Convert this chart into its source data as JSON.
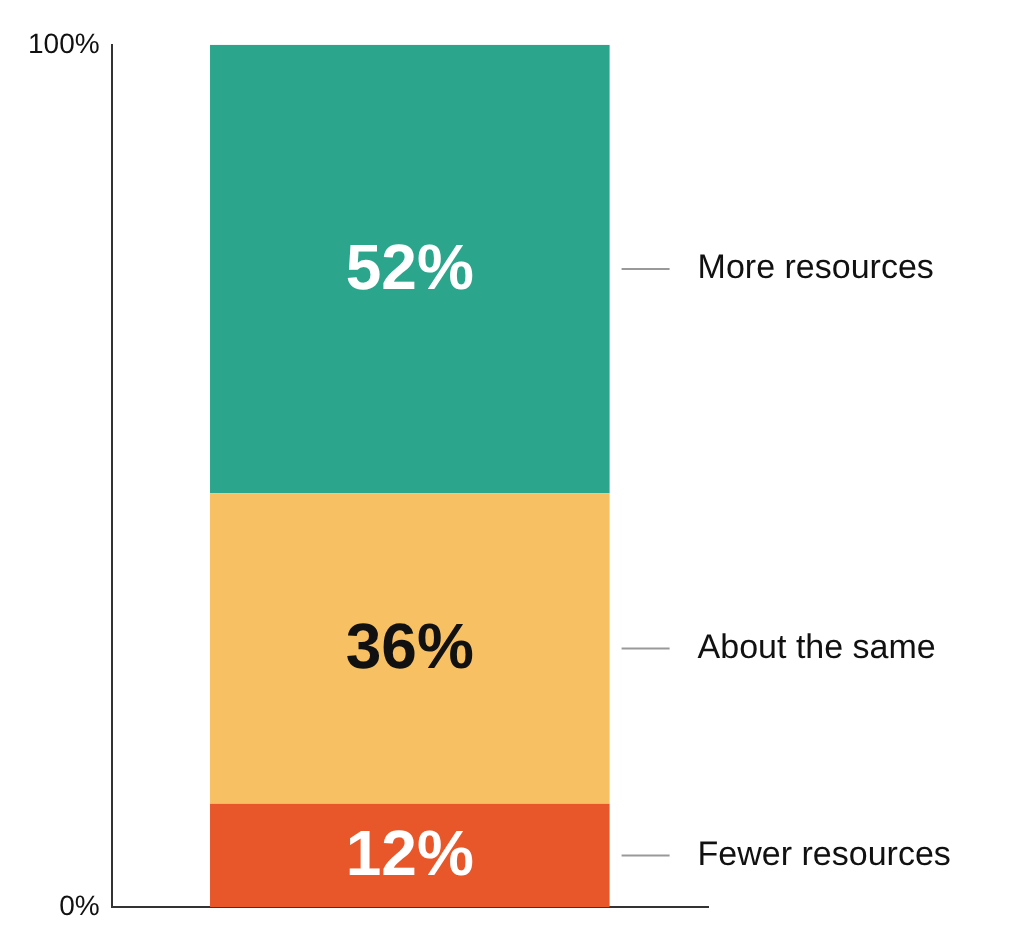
{
  "chart_data": {
    "type": "bar",
    "stacked": true,
    "categories": [
      null
    ],
    "series": [
      {
        "name": "Fewer resources",
        "color": "#e8572a",
        "values": [
          12
        ],
        "value_labels": [
          "12%"
        ]
      },
      {
        "name": "About the same",
        "color": "#f7c163",
        "values": [
          36
        ],
        "value_labels": [
          "36%"
        ]
      },
      {
        "name": "More resources",
        "color": "#2ca58d",
        "values": [
          52
        ],
        "value_labels": [
          "52%"
        ]
      }
    ],
    "ylim": [
      0,
      100
    ],
    "yticks": [
      {
        "value": 0,
        "label": "0%"
      },
      {
        "value": 100,
        "label": "100%"
      }
    ],
    "legend": false,
    "grid": false
  }
}
